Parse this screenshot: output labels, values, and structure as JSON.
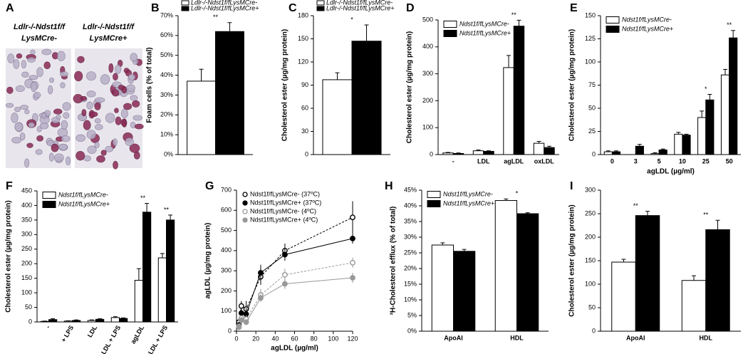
{
  "image_panel": {
    "panel": "A",
    "labels": [
      [
        "Ldlr-/-Ndst1f/f",
        "LysMCre-"
      ],
      [
        "Ldlr-/-Ndst1f/f",
        "LysMCre+"
      ]
    ]
  },
  "chart_data": [
    {
      "type": "bar",
      "panel": "B",
      "ylabel": "Foam cells (% of total)",
      "categories": [
        null
      ],
      "series": [
        {
          "name": "Ldlr-/-Ndst1f/fLysMCre-",
          "color": "#ffffff",
          "values": [
            37
          ],
          "errors": [
            6
          ]
        },
        {
          "name": "Ldlr-/-Ndst1f/fLysMCre+",
          "color": "#000000",
          "values": [
            62
          ],
          "errors": [
            4.5
          ]
        }
      ],
      "annotations": [
        "**"
      ],
      "ylim": [
        0,
        70
      ],
      "yticks": [
        {
          "value": 0,
          "label": "0%"
        },
        {
          "value": 10,
          "label": "10%"
        },
        {
          "value": 20,
          "label": "20%"
        },
        {
          "value": 30,
          "label": "30%"
        },
        {
          "value": 40,
          "label": "40%"
        },
        {
          "value": 50,
          "label": "50%"
        },
        {
          "value": 60,
          "label": "60%"
        },
        {
          "value": 70,
          "label": "70%"
        }
      ],
      "legend": "top"
    },
    {
      "type": "bar",
      "panel": "C",
      "ylabel": "Cholesterol  ester (µg/mg protein)",
      "categories": [
        null
      ],
      "series": [
        {
          "name": "Ldlr-/-Ndst1f/fLysMCre-",
          "color": "#ffffff",
          "values": [
            97
          ],
          "errors": [
            9
          ]
        },
        {
          "name": "Ldlr-/-Ndst1f/fLysMCre+",
          "color": "#000000",
          "values": [
            147
          ],
          "errors": [
            21
          ]
        }
      ],
      "annotations": [
        "*"
      ],
      "ylim": [
        0,
        180
      ],
      "yticks": [
        0,
        30,
        60,
        90,
        120,
        150,
        180
      ],
      "legend": "top"
    },
    {
      "type": "bar",
      "panel": "D",
      "ylabel": "Cholesterol ester (µg/mg protein)",
      "categories": [
        "-",
        "LDL",
        "agLDL",
        "oxLDL"
      ],
      "series": [
        {
          "name": "Ndst1f/fLysMCre-",
          "color": "#ffffff",
          "values": [
            6,
            14,
            323,
            42
          ],
          "errors": [
            2,
            3,
            45,
            7
          ]
        },
        {
          "name": "Ndst1f/fLysMCre+",
          "color": "#000000",
          "values": [
            4,
            12,
            477,
            26
          ],
          "errors": [
            2,
            2,
            22,
            5
          ]
        }
      ],
      "annotations": [
        null,
        null,
        "**",
        null
      ],
      "ylim": [
        0,
        500
      ],
      "yticks": [
        0,
        100,
        200,
        300,
        400,
        500
      ],
      "legend": "top-left"
    },
    {
      "type": "bar",
      "panel": "E",
      "ylabel": "Cholesterol ester (µg/mg protein)",
      "xlabel": "agLDL (µg/ml)",
      "categories": [
        "0",
        "3",
        "5",
        "10",
        "25",
        "50"
      ],
      "series": [
        {
          "name": "Ndst1f/fLysMCre-",
          "color": "#ffffff",
          "values": [
            3,
            0,
            1,
            22,
            40,
            86
          ],
          "errors": [
            1,
            0,
            1,
            2,
            7,
            6
          ]
        },
        {
          "name": "Ndst1f/fLysMCre+",
          "color": "#000000",
          "values": [
            3,
            9,
            5,
            21,
            59,
            126
          ],
          "errors": [
            1,
            2,
            1,
            1,
            6,
            8
          ]
        }
      ],
      "annotations": [
        null,
        null,
        null,
        null,
        "*",
        "**"
      ],
      "ylim": [
        0,
        150
      ],
      "yticks": [
        0,
        25,
        50,
        75,
        100,
        125,
        150
      ],
      "legend": "top-left"
    },
    {
      "type": "bar",
      "panel": "F",
      "ylabel": "Cholesterol  ester (µg/mg protein)",
      "categories": [
        "-",
        "+ LPS",
        "LDL",
        "LDL + LPS",
        "agLDL",
        "agLDL + LPS"
      ],
      "rotate_xticks": true,
      "series": [
        {
          "name": "Ndst1f/fLysMCre-",
          "color": "#ffffff",
          "values": [
            2,
            3,
            5,
            15,
            143,
            220
          ],
          "errors": [
            1,
            1,
            2,
            3,
            40,
            15
          ]
        },
        {
          "name": "Ndst1f/fLysMCre+",
          "color": "#000000",
          "values": [
            8,
            5,
            9,
            12,
            377,
            350
          ],
          "errors": [
            3,
            2,
            2,
            2,
            30,
            17
          ]
        }
      ],
      "annotations": [
        null,
        null,
        null,
        null,
        "**",
        "**"
      ],
      "ylim": [
        0,
        450
      ],
      "yticks": [
        0,
        50,
        100,
        150,
        200,
        250,
        300,
        350,
        400,
        450
      ],
      "legend": "top-left"
    },
    {
      "type": "scatter",
      "panel": "G",
      "ylabel": "agLDL (µg/mg protein)",
      "xlabel": "agLDL (µg/ml)",
      "x": [
        2.5,
        5,
        10,
        25,
        50,
        120
      ],
      "series": [
        {
          "name": "Ndst1f/fLysMCre- (37ºC)",
          "color": "#000000",
          "filled": false,
          "dashed": true,
          "values": [
            45,
            125,
            110,
            270,
            400,
            565
          ],
          "errors": [
            10,
            25,
            40,
            40,
            35,
            80
          ]
        },
        {
          "name": "Ndst1f/fLysMCre+ (37ºC)",
          "color": "#000000",
          "filled": true,
          "dashed": false,
          "values": [
            30,
            90,
            85,
            290,
            380,
            460
          ],
          "errors": [
            15,
            20,
            30,
            40,
            30,
            25
          ]
        },
        {
          "name": "Ndst1f/fLysMCre- (4ºC)",
          "color": "#999999",
          "filled": false,
          "dashed": true,
          "values": [
            25,
            65,
            60,
            180,
            280,
            340
          ],
          "errors": [
            10,
            15,
            20,
            30,
            30,
            25
          ]
        },
        {
          "name": "Ndst1f/fLysMCre+ (4ºC)",
          "color": "#999999",
          "filled": true,
          "dashed": false,
          "values": [
            20,
            55,
            45,
            165,
            235,
            265
          ],
          "errors": [
            10,
            10,
            15,
            20,
            25,
            25
          ]
        }
      ],
      "xlim": [
        0,
        120
      ],
      "xticks": [
        0,
        20,
        40,
        60,
        80,
        100,
        120
      ],
      "ylim": [
        0,
        700
      ],
      "yticks": [
        0,
        100,
        200,
        300,
        400,
        500,
        600,
        700
      ],
      "legend": "top-left"
    },
    {
      "type": "bar",
      "panel": "H",
      "ylabel": "³H-Cholesterol efflux (% of total)",
      "categories": [
        "ApoAI",
        "HDL"
      ],
      "series": [
        {
          "name": "Ndst1f/fLysMCre-",
          "color": "#ffffff",
          "values": [
            27.5,
            41.7
          ],
          "errors": [
            0.7,
            0.5
          ]
        },
        {
          "name": "Ndst1f/fLysMCre+",
          "color": "#000000",
          "values": [
            25.5,
            37.5
          ],
          "errors": [
            0.6,
            0.3
          ]
        }
      ],
      "annotations": [
        null,
        "*"
      ],
      "ylim": [
        0,
        45
      ],
      "yticks": [
        {
          "value": 0,
          "label": "0%"
        },
        {
          "value": 5,
          "label": "5%"
        },
        {
          "value": 10,
          "label": "10%"
        },
        {
          "value": 15,
          "label": "15%"
        },
        {
          "value": 20,
          "label": "20%"
        },
        {
          "value": 25,
          "label": "25%"
        },
        {
          "value": 30,
          "label": "30%"
        },
        {
          "value": 35,
          "label": "35%"
        },
        {
          "value": 40,
          "label": "40%"
        },
        {
          "value": 45,
          "label": "45%"
        }
      ],
      "legend": "top-left"
    },
    {
      "type": "bar",
      "panel": "I",
      "ylabel": "Cholesterol ester (µg/mg protein)",
      "categories": [
        "ApoAI",
        "HDL"
      ],
      "series": [
        {
          "name": "Ndst1f/fLysMCre-",
          "color": "#ffffff",
          "values": [
            147,
            108
          ],
          "errors": [
            6,
            10
          ]
        },
        {
          "name": "Ndst1f/fLysMCre+",
          "color": "#000000",
          "values": [
            246,
            216
          ],
          "errors": [
            9,
            20
          ]
        }
      ],
      "annotations": [
        "**",
        "**"
      ],
      "ylim": [
        0,
        300
      ],
      "yticks": [
        0,
        50,
        100,
        150,
        200,
        250,
        300
      ]
    }
  ]
}
